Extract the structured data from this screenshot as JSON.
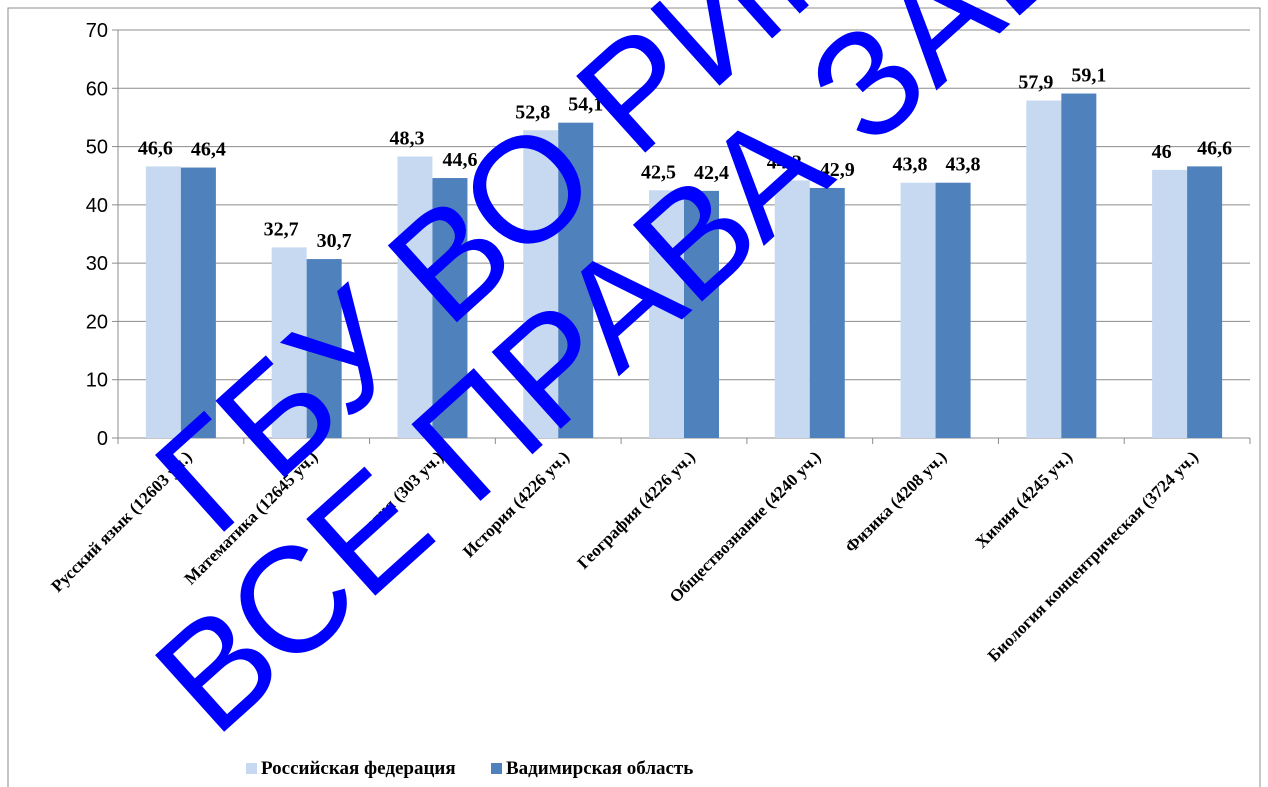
{
  "chart_data": {
    "type": "bar",
    "categories": [
      "Русский язык (12603 уч.)",
      "Математика (12645 уч.)",
      "Биология (303 уч.)",
      "История (4226 уч.)",
      "География (4226 уч.)",
      "Обществознание (4240 уч.)",
      "Физика (4208 уч.)",
      "Химия (4245 уч.)",
      "Биология концентрическая (3724 уч.)"
    ],
    "series": [
      {
        "name": "Российская федерация",
        "color": "#c6d9f1",
        "values": [
          46.6,
          32.7,
          48.3,
          52.8,
          42.5,
          44.2,
          43.8,
          57.9,
          46
        ],
        "labels": [
          "46,6",
          "32,7",
          "48,3",
          "52,8",
          "42,5",
          "44,2",
          "43,8",
          "57,9",
          "46"
        ]
      },
      {
        "name": "Вадимирская область",
        "color": "#4f81bd",
        "values": [
          46.4,
          30.7,
          44.6,
          54.1,
          42.4,
          42.9,
          43.8,
          59.1,
          46.6
        ],
        "labels": [
          "46,4",
          "30,7",
          "44,6",
          "54,1",
          "42,4",
          "42,9",
          "43,8",
          "59,1",
          "46,6"
        ]
      }
    ],
    "y_ticks": [
      "0",
      "10",
      "20",
      "30",
      "40",
      "50",
      "60",
      "70"
    ],
    "ylim": [
      0,
      70
    ],
    "grid": true,
    "legend_position": "bottom"
  },
  "watermark": {
    "line1": "ГБУ ВО РИМЦ",
    "line2": "ВСЕ ПРАВА ЗАЩ",
    "color": "#0000ff"
  }
}
